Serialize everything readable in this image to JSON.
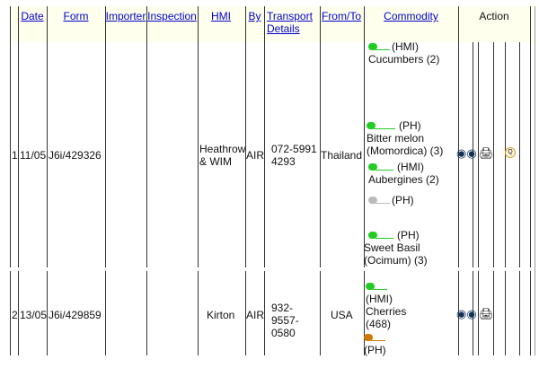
{
  "headers": [
    "Date",
    "Form",
    "Importer",
    "Inspection",
    "HMI",
    "By",
    "Transport Details",
    "From/To",
    "Commodity",
    "Action"
  ],
  "rows": [
    {
      "num": "1",
      "date": "11/05",
      "form": "J6i/429326",
      "importer": "",
      "inspection": "",
      "hmi": "Heathrow & WIM",
      "by": "AIR",
      "transport": "072-59914293",
      "from_to": "Thailand",
      "commodities": [
        {
          "status": "(HMI)",
          "name": "Cucumbers (2)",
          "color": "#22cc22"
        },
        {
          "status": "(PH)",
          "name": "Bitter melon (Momordica) (3)",
          "color": "#22cc22"
        },
        {
          "status": "(HMI)",
          "name": "Aubergines (2)",
          "color": "#22cc22"
        },
        {
          "status": "(PH)",
          "name": "",
          "color": "#bbbbbb"
        },
        {
          "status": "(PH)",
          "name": "Sweet Basil (Ocimum) (3)",
          "color": "#22cc22"
        }
      ],
      "actions": [
        "view-icon",
        "print-icon",
        "query-icon"
      ]
    },
    {
      "num": "2",
      "date": "13/05",
      "form": "J6i/429859",
      "importer": "",
      "inspection": "",
      "hmi": "Kirton",
      "by": "AIR",
      "transport": "932-9557-0580",
      "from_to": "USA",
      "commodities": [
        {
          "status": "(HMI)",
          "name": "Cherries (468)",
          "color": "#22cc22"
        },
        {
          "status": "(PH)",
          "name": "",
          "color": "#cc7a00"
        }
      ],
      "actions": [
        "view-icon",
        "print-icon"
      ]
    }
  ]
}
